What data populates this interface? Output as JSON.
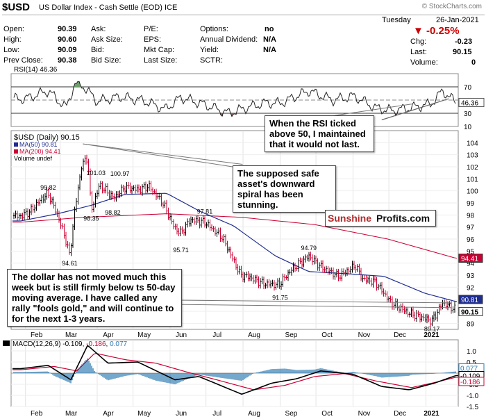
{
  "header": {
    "symbol": "$USD",
    "description": "US Dollar Index - Cash Settle (EOD)",
    "exchange": "ICE",
    "source": "© StockCharts.com",
    "day": "Tuesday",
    "date": "26-Jan-2021"
  },
  "quote": {
    "open_label": "Open:",
    "open": "90.39",
    "high_label": "High:",
    "high": "90.60",
    "low_label": "Low:",
    "low": "90.09",
    "prev_label": "Prev Close:",
    "prev": "90.38",
    "ask_label": "Ask:",
    "ask": "",
    "asksize_label": "Ask Size:",
    "asksize": "",
    "bid_label": "Bid:",
    "bid": "",
    "bidsize_label": "Bid Size:",
    "bidsize": "",
    "pe_label": "P/E:",
    "eps_label": "EPS:",
    "mktcap_label": "Mkt Cap:",
    "lastsize_label": "Last Size:",
    "options_label": "Options:",
    "options": "no",
    "div_label": "Annual Dividend:",
    "div": "N/A",
    "yield_label": "Yield:",
    "yield": "N/A",
    "sctr_label": "SCTR:",
    "pct_change": "▼ -0.25%",
    "chg_label": "Chg:",
    "chg": "-0.23",
    "last_label": "Last:",
    "last": "90.15",
    "volume_label": "Volume:",
    "volume": "0"
  },
  "colors": {
    "up": "#000000",
    "down": "#cc0033",
    "ma50": "#1f2d8f",
    "ma200": "#cc0033",
    "rsi_over": "#6d9f6d",
    "rsi_under": "#9e5a5a",
    "macd_hist": "#2a78b0",
    "pct_change": "#cc0000"
  },
  "annotations": {
    "rsi_note": "When the RSI ticked above 50, I maintained that it would not last.",
    "spiral_note": "The supposed safe asset's downward spiral has been stunning.",
    "dollar_note": "The dollar has not moved much this week but is still firmly below ts 50-day moving average. I have called any rally \"fools gold,\" and will continue to for the next 1-3 years.",
    "logo_a": "Sunshine",
    "logo_b": "Profits.com"
  },
  "chart_data": [
    {
      "type": "line",
      "panel": "RSI",
      "legend": "RSI(14) 46.36",
      "last_value": "46.36",
      "ylim": [
        10,
        90
      ],
      "ticks": [
        "70",
        "50",
        "30",
        "10"
      ],
      "x": [
        "2020-02-01",
        "2020-02-20",
        "2020-03-06",
        "2020-03-13",
        "2020-03-20",
        "2020-04-01",
        "2020-04-20",
        "2020-05-10",
        "2020-05-28",
        "2020-06-10",
        "2020-06-30",
        "2020-07-20",
        "2020-08-03",
        "2020-08-20",
        "2020-09-01",
        "2020-09-25",
        "2020-10-15",
        "2020-11-02",
        "2020-11-20",
        "2020-12-04",
        "2020-12-18",
        "2021-01-05",
        "2021-01-15",
        "2021-01-26"
      ],
      "y": [
        52,
        64,
        38,
        74,
        72,
        48,
        55,
        49,
        36,
        54,
        43,
        30,
        38,
        46,
        45,
        64,
        50,
        56,
        38,
        34,
        38,
        44,
        64,
        46.36
      ]
    },
    {
      "type": "line",
      "panel": "Price",
      "title": "$USD (Daily) 90.15",
      "legend": [
        "MA(50) 90.81",
        "MA(200) 94.41",
        "Volume undef"
      ],
      "ylim": [
        88.5,
        105
      ],
      "y_ticks": [
        "89",
        "90",
        "91",
        "92",
        "93",
        "94",
        "95",
        "96",
        "97",
        "98",
        "99",
        "100",
        "101",
        "102",
        "103",
        "104"
      ],
      "x_ticks": [
        "Feb",
        "Mar",
        "Apr",
        "May",
        "Jun",
        "Jul",
        "Aug",
        "Sep",
        "Oct",
        "Nov",
        "Dec",
        "2021"
      ],
      "series": [
        {
          "name": "$USD",
          "x": [
            "2020-01-28",
            "2020-02-05",
            "2020-02-12",
            "2020-02-20",
            "2020-02-27",
            "2020-03-05",
            "2020-03-09",
            "2020-03-13",
            "2020-03-19",
            "2020-03-24",
            "2020-03-27",
            "2020-04-03",
            "2020-04-15",
            "2020-04-24",
            "2020-05-06",
            "2020-05-14",
            "2020-05-26",
            "2020-06-05",
            "2020-06-10",
            "2020-06-18",
            "2020-06-30",
            "2020-07-15",
            "2020-07-30",
            "2020-08-05",
            "2020-08-18",
            "2020-08-31",
            "2020-09-10",
            "2020-09-25",
            "2020-10-05",
            "2020-10-20",
            "2020-11-03",
            "2020-11-09",
            "2020-11-20",
            "2020-12-03",
            "2020-12-17",
            "2021-01-06",
            "2021-01-15",
            "2021-01-26"
          ],
          "y": [
            97.9,
            98.3,
            99.1,
            99.82,
            98.2,
            96.2,
            94.61,
            98.2,
            102.1,
            102.8,
            98.35,
            100.5,
            99.4,
            100.3,
            100.1,
            100.4,
            99.0,
            96.9,
            96.5,
            97.6,
            97.4,
            96.1,
            93.0,
            92.9,
            92.3,
            92.2,
            93.4,
            94.6,
            93.7,
            92.9,
            93.8,
            92.7,
            92.4,
            90.7,
            89.9,
            89.2,
            90.7,
            90.15
          ]
        },
        {
          "name": "MA(50)",
          "x": [
            "2020-01-28",
            "2020-02-28",
            "2020-03-27",
            "2020-04-24",
            "2020-05-29",
            "2020-06-26",
            "2020-07-24",
            "2020-08-28",
            "2020-09-25",
            "2020-10-30",
            "2020-11-27",
            "2020-12-31",
            "2021-01-26"
          ],
          "y": [
            97.5,
            98.1,
            98.8,
            99.7,
            99.8,
            98.3,
            97.1,
            94.6,
            93.3,
            93.1,
            92.9,
            91.5,
            90.81
          ]
        },
        {
          "name": "MA(200)",
          "x": [
            "2020-01-28",
            "2020-03-20",
            "2020-05-29",
            "2020-07-31",
            "2020-09-30",
            "2020-11-30",
            "2021-01-26"
          ],
          "y": [
            97.4,
            97.8,
            98.1,
            97.8,
            97.2,
            96.0,
            94.41
          ]
        }
      ],
      "labels": [
        {
          "text": "99.82",
          "x": "2020-02-20",
          "y": 99.82
        },
        {
          "text": "98.35",
          "x": "2020-03-27",
          "y": 98.35
        },
        {
          "text": "94.61",
          "x": "2020-03-09",
          "y": 94.61
        },
        {
          "text": "101.03",
          "x": "2020-03-31",
          "y": 101.03
        },
        {
          "text": "100.97",
          "x": "2020-04-20",
          "y": 100.97
        },
        {
          "text": "98.82",
          "x": "2020-04-14",
          "y": 98.82
        },
        {
          "text": "97.81",
          "x": "2020-06-30",
          "y": 97.81
        },
        {
          "text": "95.71",
          "x": "2020-06-10",
          "y": 95.71
        },
        {
          "text": "94.79",
          "x": "2020-09-25",
          "y": 94.79
        },
        {
          "text": "91.75",
          "x": "2020-09-01",
          "y": 91.75
        },
        {
          "text": "89.17",
          "x": "2021-01-06",
          "y": 89.17
        }
      ],
      "last_value_tags": [
        "94.41",
        "90.81",
        "90.15"
      ]
    },
    {
      "type": "line",
      "panel": "MACD",
      "legend_label": "MACD(12,26,9)",
      "legend_macd": "-0.109",
      "legend_signal": "-0.186",
      "legend_hist": "0.077",
      "ylim": [
        -1.5,
        1.5
      ],
      "ticks": [
        "1.0",
        "0.5",
        "0.0",
        "-0.5",
        "-1.0",
        "-1.5"
      ],
      "x_ticks": [
        "Feb",
        "Mar",
        "Apr",
        "May",
        "Jun",
        "Jul",
        "Aug",
        "Sep",
        "Oct",
        "Nov",
        "Dec",
        "2021"
      ],
      "tags": [
        "0.077",
        "-0.109",
        "-0.186"
      ],
      "series": [
        {
          "name": "MACD",
          "x": [
            "2020-01-28",
            "2020-02-20",
            "2020-03-10",
            "2020-03-24",
            "2020-04-10",
            "2020-05-05",
            "2020-06-05",
            "2020-06-25",
            "2020-07-31",
            "2020-08-25",
            "2020-09-15",
            "2020-10-05",
            "2020-11-01",
            "2020-11-25",
            "2020-12-18",
            "2021-01-08",
            "2021-01-26"
          ],
          "y": [
            0.2,
            0.35,
            -0.3,
            1.25,
            0.45,
            0.5,
            -0.3,
            -0.15,
            -0.95,
            -0.45,
            -0.25,
            0.1,
            -0.05,
            -0.6,
            -0.75,
            -0.45,
            -0.109
          ]
        },
        {
          "name": "Signal",
          "x": [
            "2020-01-28",
            "2020-02-25",
            "2020-03-15",
            "2020-03-30",
            "2020-04-25",
            "2020-05-20",
            "2020-06-15",
            "2020-07-10",
            "2020-08-10",
            "2020-09-05",
            "2020-09-30",
            "2020-10-25",
            "2020-11-20",
            "2020-12-20",
            "2021-01-10",
            "2021-01-26"
          ],
          "y": [
            0.15,
            0.3,
            0.1,
            0.9,
            0.6,
            0.45,
            0.05,
            -0.3,
            -0.75,
            -0.55,
            -0.15,
            -0.02,
            -0.35,
            -0.65,
            -0.4,
            -0.186
          ]
        }
      ]
    }
  ]
}
